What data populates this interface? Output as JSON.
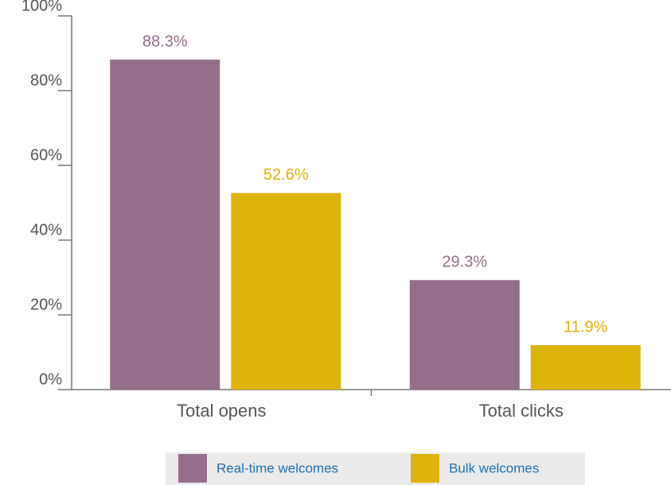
{
  "chart_data": {
    "type": "bar",
    "categories": [
      "Total opens",
      "Total clicks"
    ],
    "series": [
      {
        "name": "Real-time welcomes",
        "color": "#946e8b",
        "values": [
          88.3,
          29.3
        ],
        "value_labels": [
          "88.3%",
          "29.3%"
        ]
      },
      {
        "name": "Bulk welcomes",
        "color": "#ddb30a",
        "values": [
          52.6,
          11.9
        ],
        "value_labels": [
          "52.6%",
          "11.9%"
        ]
      }
    ],
    "ylim": [
      0,
      100
    ],
    "yticks": [
      {
        "value": 0,
        "label": "0%"
      },
      {
        "value": 20,
        "label": "20%"
      },
      {
        "value": 40,
        "label": "40%"
      },
      {
        "value": 60,
        "label": "60%"
      },
      {
        "value": 80,
        "label": "80%"
      },
      {
        "value": 100,
        "label": "100%"
      }
    ],
    "grid": false,
    "legend": "bottom"
  }
}
